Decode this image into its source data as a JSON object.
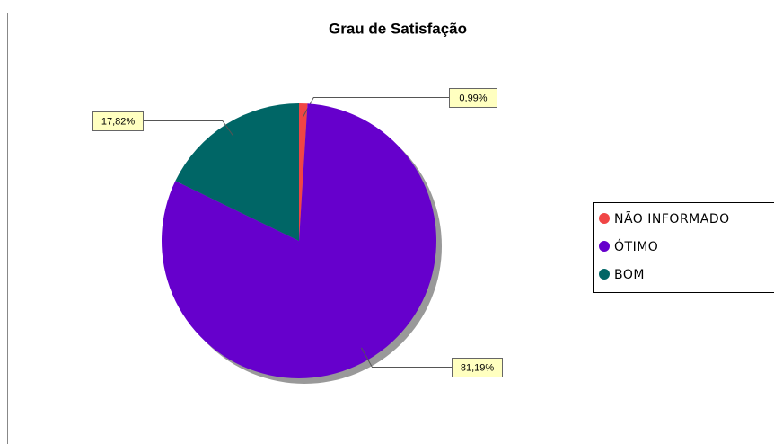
{
  "chart_data": {
    "type": "pie",
    "title": "Grau de Satisfação",
    "categories": [
      "NÃO INFORMADO",
      "ÓTIMO",
      "BOM"
    ],
    "values": [
      0.99,
      81.19,
      17.82
    ],
    "value_labels": [
      "0,99%",
      "81,19%",
      "17,82%"
    ],
    "colors": [
      "#f04545",
      "#6600cc",
      "#006666"
    ],
    "legend": "right"
  }
}
